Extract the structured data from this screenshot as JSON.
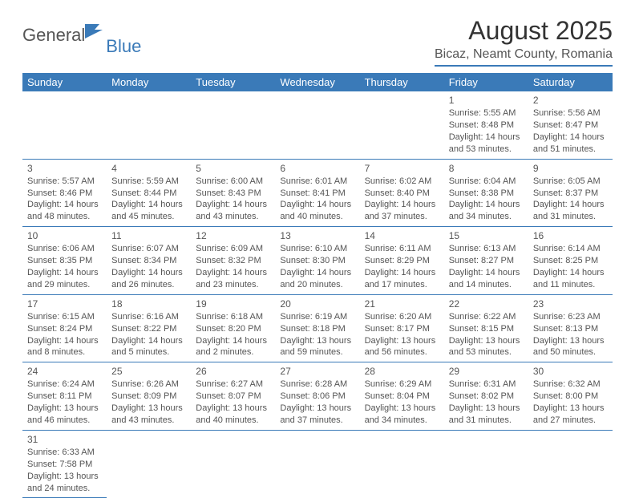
{
  "logo": {
    "general": "General",
    "blue": "Blue"
  },
  "title": "August 2025",
  "location": "Bicaz, Neamt County, Romania",
  "colors": {
    "accent": "#3a7ab8",
    "text": "#555555",
    "headerText": "#ffffff",
    "bg": "#ffffff"
  },
  "dayHeaders": [
    "Sunday",
    "Monday",
    "Tuesday",
    "Wednesday",
    "Thursday",
    "Friday",
    "Saturday"
  ],
  "grid": {
    "firstDayOffset": 5,
    "daysInMonth": 31
  },
  "days": {
    "1": {
      "sunrise": "5:55 AM",
      "sunset": "8:48 PM",
      "dl_h": 14,
      "dl_m": 53
    },
    "2": {
      "sunrise": "5:56 AM",
      "sunset": "8:47 PM",
      "dl_h": 14,
      "dl_m": 51
    },
    "3": {
      "sunrise": "5:57 AM",
      "sunset": "8:46 PM",
      "dl_h": 14,
      "dl_m": 48
    },
    "4": {
      "sunrise": "5:59 AM",
      "sunset": "8:44 PM",
      "dl_h": 14,
      "dl_m": 45
    },
    "5": {
      "sunrise": "6:00 AM",
      "sunset": "8:43 PM",
      "dl_h": 14,
      "dl_m": 43
    },
    "6": {
      "sunrise": "6:01 AM",
      "sunset": "8:41 PM",
      "dl_h": 14,
      "dl_m": 40
    },
    "7": {
      "sunrise": "6:02 AM",
      "sunset": "8:40 PM",
      "dl_h": 14,
      "dl_m": 37
    },
    "8": {
      "sunrise": "6:04 AM",
      "sunset": "8:38 PM",
      "dl_h": 14,
      "dl_m": 34
    },
    "9": {
      "sunrise": "6:05 AM",
      "sunset": "8:37 PM",
      "dl_h": 14,
      "dl_m": 31
    },
    "10": {
      "sunrise": "6:06 AM",
      "sunset": "8:35 PM",
      "dl_h": 14,
      "dl_m": 29
    },
    "11": {
      "sunrise": "6:07 AM",
      "sunset": "8:34 PM",
      "dl_h": 14,
      "dl_m": 26
    },
    "12": {
      "sunrise": "6:09 AM",
      "sunset": "8:32 PM",
      "dl_h": 14,
      "dl_m": 23
    },
    "13": {
      "sunrise": "6:10 AM",
      "sunset": "8:30 PM",
      "dl_h": 14,
      "dl_m": 20
    },
    "14": {
      "sunrise": "6:11 AM",
      "sunset": "8:29 PM",
      "dl_h": 14,
      "dl_m": 17
    },
    "15": {
      "sunrise": "6:13 AM",
      "sunset": "8:27 PM",
      "dl_h": 14,
      "dl_m": 14
    },
    "16": {
      "sunrise": "6:14 AM",
      "sunset": "8:25 PM",
      "dl_h": 14,
      "dl_m": 11
    },
    "17": {
      "sunrise": "6:15 AM",
      "sunset": "8:24 PM",
      "dl_h": 14,
      "dl_m": 8
    },
    "18": {
      "sunrise": "6:16 AM",
      "sunset": "8:22 PM",
      "dl_h": 14,
      "dl_m": 5
    },
    "19": {
      "sunrise": "6:18 AM",
      "sunset": "8:20 PM",
      "dl_h": 14,
      "dl_m": 2
    },
    "20": {
      "sunrise": "6:19 AM",
      "sunset": "8:18 PM",
      "dl_h": 13,
      "dl_m": 59
    },
    "21": {
      "sunrise": "6:20 AM",
      "sunset": "8:17 PM",
      "dl_h": 13,
      "dl_m": 56
    },
    "22": {
      "sunrise": "6:22 AM",
      "sunset": "8:15 PM",
      "dl_h": 13,
      "dl_m": 53
    },
    "23": {
      "sunrise": "6:23 AM",
      "sunset": "8:13 PM",
      "dl_h": 13,
      "dl_m": 50
    },
    "24": {
      "sunrise": "6:24 AM",
      "sunset": "8:11 PM",
      "dl_h": 13,
      "dl_m": 46
    },
    "25": {
      "sunrise": "6:26 AM",
      "sunset": "8:09 PM",
      "dl_h": 13,
      "dl_m": 43
    },
    "26": {
      "sunrise": "6:27 AM",
      "sunset": "8:07 PM",
      "dl_h": 13,
      "dl_m": 40
    },
    "27": {
      "sunrise": "6:28 AM",
      "sunset": "8:06 PM",
      "dl_h": 13,
      "dl_m": 37
    },
    "28": {
      "sunrise": "6:29 AM",
      "sunset": "8:04 PM",
      "dl_h": 13,
      "dl_m": 34
    },
    "29": {
      "sunrise": "6:31 AM",
      "sunset": "8:02 PM",
      "dl_h": 13,
      "dl_m": 31
    },
    "30": {
      "sunrise": "6:32 AM",
      "sunset": "8:00 PM",
      "dl_h": 13,
      "dl_m": 27
    },
    "31": {
      "sunrise": "6:33 AM",
      "sunset": "7:58 PM",
      "dl_h": 13,
      "dl_m": 24
    }
  },
  "labels": {
    "sunrise": "Sunrise: ",
    "sunset": "Sunset: ",
    "daylight1": "Daylight: ",
    "daylight2": " hours",
    "daylight3": "and ",
    "daylight4": " minutes."
  }
}
